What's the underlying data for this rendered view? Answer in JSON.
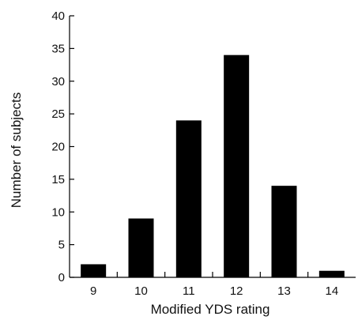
{
  "chart_data": {
    "type": "bar",
    "categories": [
      "9",
      "10",
      "11",
      "12",
      "13",
      "14"
    ],
    "values": [
      2,
      9,
      24,
      34,
      14,
      1
    ],
    "xlabel": "Modified YDS rating",
    "ylabel": "Number of subjects",
    "ylim": [
      0,
      40
    ],
    "yticks": [
      0,
      5,
      10,
      15,
      20,
      25,
      30,
      35,
      40
    ],
    "bar_color": "#000000",
    "grid": false,
    "legend": "none"
  }
}
